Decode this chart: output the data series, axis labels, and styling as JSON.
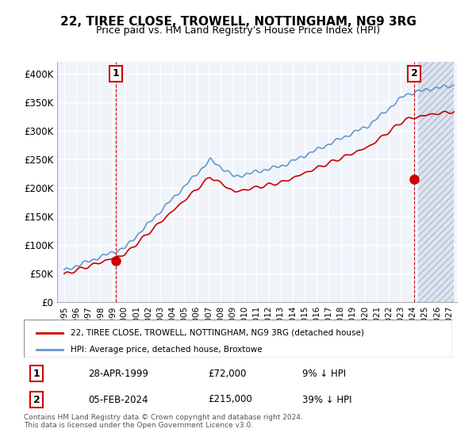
{
  "title": "22, TIREE CLOSE, TROWELL, NOTTINGHAM, NG9 3RG",
  "subtitle": "Price paid vs. HM Land Registry's House Price Index (HPI)",
  "ylabel": "",
  "xlabel": "",
  "ylim": [
    0,
    420000
  ],
  "yticks": [
    0,
    50000,
    100000,
    150000,
    200000,
    250000,
    300000,
    350000,
    400000
  ],
  "ytick_labels": [
    "£0",
    "£50K",
    "£100K",
    "£150K",
    "£200K",
    "£250K",
    "£300K",
    "£350K",
    "£400K"
  ],
  "hpi_color": "#6699cc",
  "price_color": "#cc0000",
  "marker1_date_idx": 16,
  "marker2_date_idx": 347,
  "marker1_price": 72000,
  "marker2_price": 215000,
  "legend_label1": "22, TIREE CLOSE, TROWELL, NOTTINGHAM, NG9 3RG (detached house)",
  "legend_label2": "HPI: Average price, detached house, Broxtowe",
  "table_row1": [
    "1",
    "28-APR-1999",
    "£72,000",
    "9% ↓ HPI"
  ],
  "table_row2": [
    "2",
    "05-FEB-2024",
    "£215,000",
    "39% ↓ HPI"
  ],
  "footnote1": "Contains HM Land Registry data © Crown copyright and database right 2024.",
  "footnote2": "This data is licensed under the Open Government Licence v3.0.",
  "bg_color": "#ffffff",
  "plot_bg_color": "#f0f4fa",
  "grid_color": "#ffffff",
  "hatch_color": "#d0d8e8"
}
